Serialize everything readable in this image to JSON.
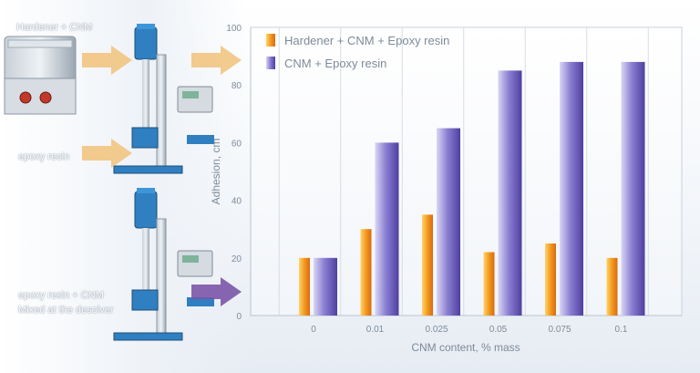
{
  "labels": {
    "hardener_cnm": "Hardener + CNM",
    "epoxy_resin": "epoxy resin",
    "epoxy_resin_cnm": "epoxy resin + CNM",
    "mixed_desolver": "Mixed at the desolver"
  },
  "colors": {
    "orange": "#f39a1e",
    "purple": "#6f5fbf",
    "arrow_orange": "#f1c27a",
    "arrow_purple": "#7b55a8",
    "equipment_blue": "#2f7fc1"
  },
  "chart_data": {
    "type": "bar",
    "categories": [
      "0",
      "0.01",
      "0.025",
      "0.05",
      "0.075",
      "0.1"
    ],
    "series": [
      {
        "name": "Hardener + CNM + Epoxy resin",
        "values": [
          20,
          30,
          35,
          22,
          25,
          20
        ]
      },
      {
        "name": "CNM + Epoxy resin",
        "values": [
          20,
          60,
          65,
          85,
          88,
          88
        ]
      }
    ],
    "xlabel": "CNM content, % mass",
    "ylabel": "Adhesion, cm",
    "ylim": [
      0,
      100
    ],
    "yticks": [
      "0",
      "20",
      "40",
      "60",
      "80",
      "100"
    ],
    "legend_position": "top-left",
    "grid": "vertical"
  }
}
